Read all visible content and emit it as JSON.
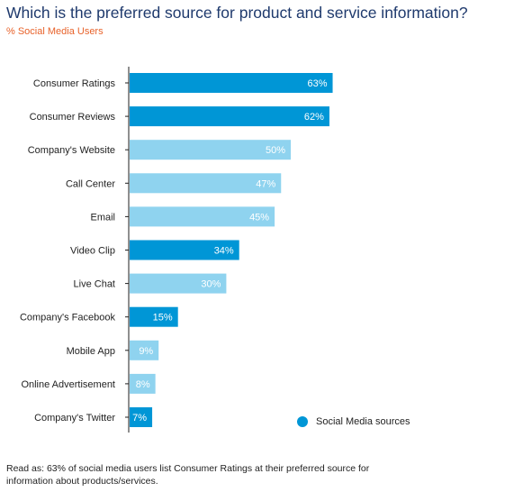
{
  "title": "Which is the preferred source for product and service information?",
  "subtitle": "% Social Media Users",
  "legend": {
    "label": "Social Media sources",
    "color": "#0096d6"
  },
  "footnote": "Read as: 63% of social media users list Consumer Ratings at their preferred source for information about products/services.",
  "colors": {
    "social": "#0096d6",
    "other": "#8fd3ef",
    "axis": "#1f1f1f"
  },
  "chart_data": {
    "type": "bar",
    "orientation": "horizontal",
    "categories": [
      "Consumer Ratings",
      "Consumer Reviews",
      "Company's Website",
      "Call Center",
      "Email",
      "Video Clip",
      "Live Chat",
      "Company's Facebook",
      "Mobile App",
      "Online Advertisement",
      "Company's Twitter"
    ],
    "values": [
      63,
      62,
      50,
      47,
      45,
      34,
      30,
      15,
      9,
      8,
      7
    ],
    "value_labels": [
      "63%",
      "62%",
      "50%",
      "47%",
      "45%",
      "34%",
      "30%",
      "15%",
      "9%",
      "8%",
      "7%"
    ],
    "social_media_source": [
      true,
      true,
      false,
      false,
      false,
      true,
      false,
      true,
      false,
      false,
      true
    ],
    "title": "Which is the preferred source for product and service information?",
    "subtitle": "% Social Media Users",
    "xlabel": "",
    "ylabel": "",
    "xlim": [
      0,
      100
    ],
    "grid": false,
    "legend_position": "bottom-right"
  }
}
